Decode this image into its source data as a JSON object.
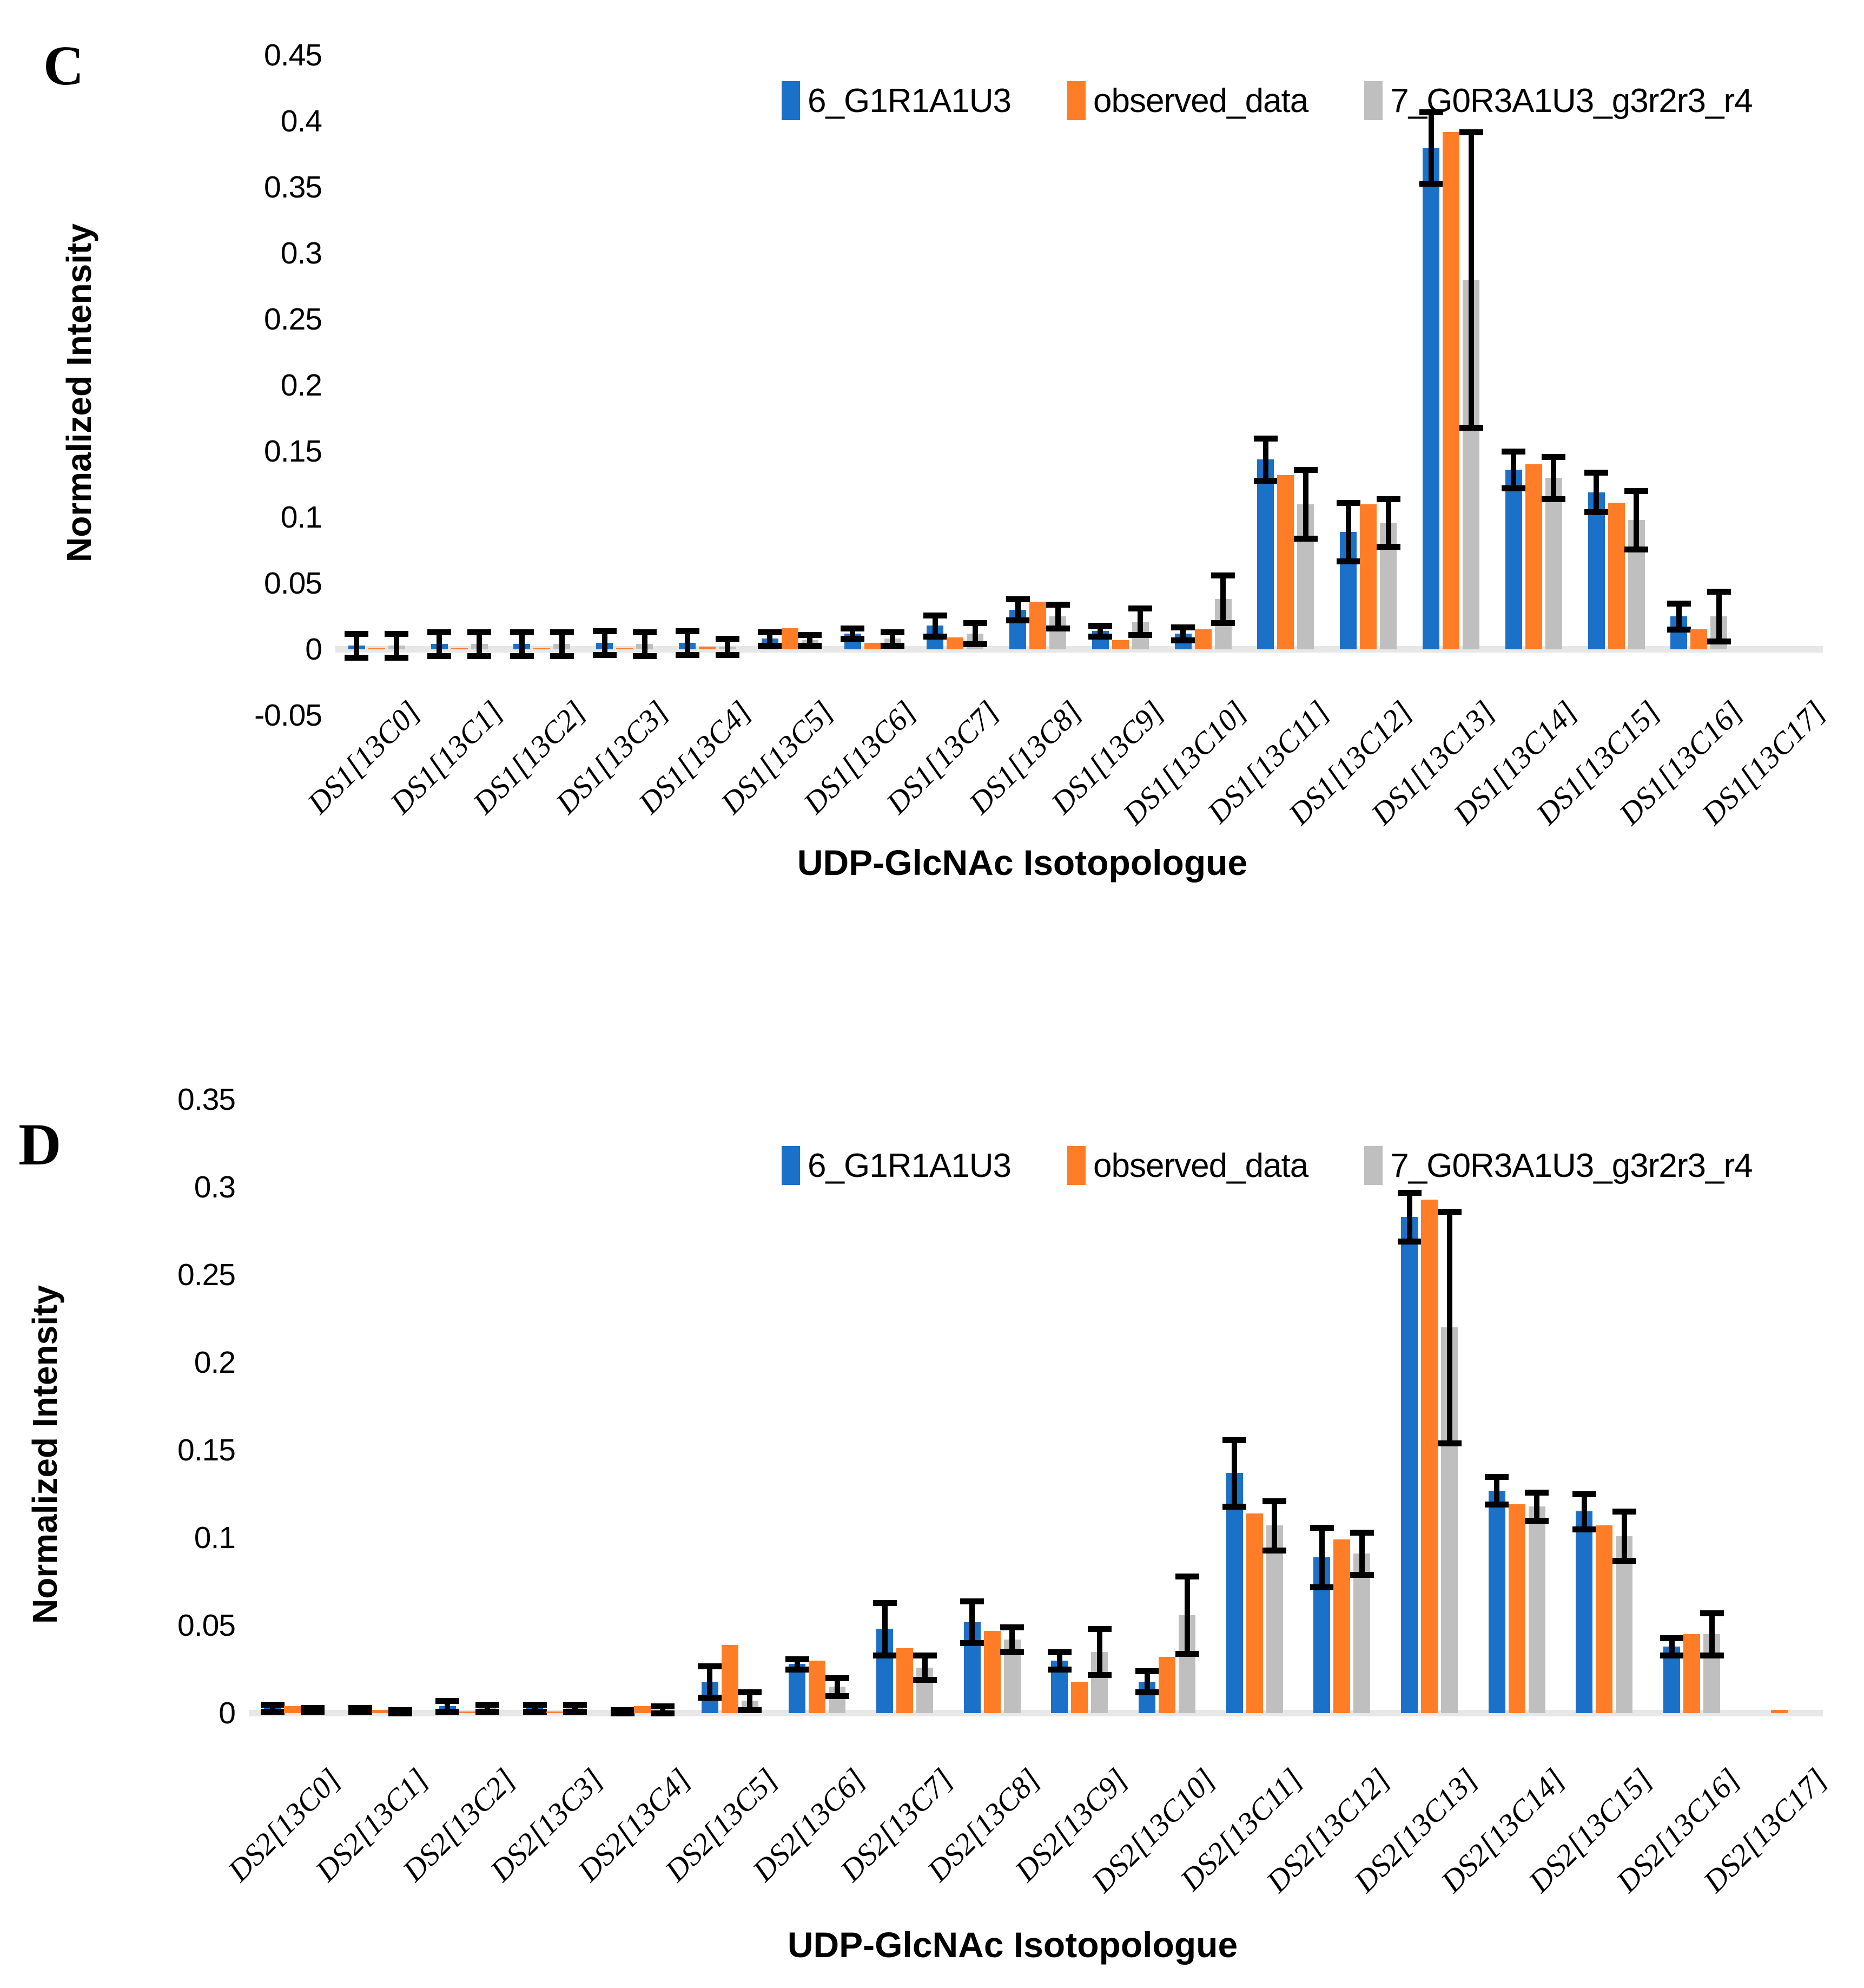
{
  "colors": {
    "blue": "#1B70C7",
    "orange": "#FF7D26",
    "gray": "#BFBFBF",
    "error_bar": "#000000",
    "axis_line": "#E7E7E7",
    "text": "#000000",
    "background": "#FFFFFF"
  },
  "chart_data": [
    {
      "type": "bar",
      "panel_letter": "C",
      "xlabel": "UDP-GlcNAc Isotopologue",
      "ylabel": "Normalized Intensity",
      "ylim": [
        -0.05,
        0.45
      ],
      "y_ticks": [
        "0.45",
        "0.4",
        "0.35",
        "0.3",
        "0.25",
        "0.2",
        "0.15",
        "0.1",
        "0.05",
        "0",
        "-0.05"
      ],
      "grid": false,
      "legend_position": "top-center",
      "categories": [
        "DS1[13C0]",
        "DS1[13C1]",
        "DS1[13C2]",
        "DS1[13C3]",
        "DS1[13C4]",
        "DS1[13C5]",
        "DS1[13C6]",
        "DS1[13C7]",
        "DS1[13C8]",
        "DS1[13C9]",
        "DS1[13C10]",
        "DS1[13C11]",
        "DS1[13C12]",
        "DS1[13C13]",
        "DS1[13C14]",
        "DS1[13C15]",
        "DS1[13C16]",
        "DS1[13C17]"
      ],
      "series": [
        {
          "name": "6_G1R1A1U3",
          "color_key": "blue",
          "values": [
            0.003,
            0.004,
            0.004,
            0.005,
            0.005,
            0.008,
            0.012,
            0.018,
            0.03,
            0.014,
            0.012,
            0.144,
            0.089,
            0.38,
            0.136,
            0.119,
            0.025,
            0
          ],
          "errors": [
            0.009,
            0.009,
            0.009,
            0.009,
            0.009,
            0.005,
            0.004,
            0.008,
            0.008,
            0.004,
            0.005,
            0.016,
            0.022,
            0.027,
            0.014,
            0.015,
            0.01,
            null
          ]
        },
        {
          "name": "observed_data",
          "color_key": "orange",
          "values": [
            0.001,
            0.001,
            0.001,
            0.001,
            0.002,
            0.016,
            0.005,
            0.009,
            0.036,
            0.007,
            0.015,
            0.132,
            0.11,
            0.392,
            0.14,
            0.111,
            0.015,
            0
          ],
          "errors": null
        },
        {
          "name": "7_G0R3A1U3_g3r2r3_r4",
          "color_key": "gray",
          "values": [
            0.003,
            0.004,
            0.004,
            0.004,
            0.002,
            0.007,
            0.008,
            0.012,
            0.025,
            0.021,
            0.038,
            0.11,
            0.096,
            0.28,
            0.13,
            0.098,
            0.025,
            0
          ],
          "errors": [
            0.009,
            0.009,
            0.009,
            0.009,
            0.006,
            0.004,
            0.005,
            0.008,
            0.009,
            0.01,
            0.018,
            0.026,
            0.018,
            0.112,
            0.016,
            0.022,
            0.019,
            null
          ]
        }
      ]
    },
    {
      "type": "bar",
      "panel_letter": "D",
      "xlabel": "UDP-GlcNAc Isotopologue",
      "ylabel": "Normalized Intensity",
      "ylim": [
        0,
        0.35
      ],
      "y_ticks": [
        "0.35",
        "0.3",
        "0.25",
        "0.2",
        "0.15",
        "0.1",
        "0.05",
        "0"
      ],
      "grid": false,
      "legend_position": "top-center",
      "categories": [
        "DS2[13C0]",
        "DS2[13C1]",
        "DS2[13C2]",
        "DS2[13C3]",
        "DS2[13C4]",
        "DS2[13C5]",
        "DS2[13C6]",
        "DS2[13C7]",
        "DS2[13C8]",
        "DS2[13C9]",
        "DS2[13C10]",
        "DS2[13C11]",
        "DS2[13C12]",
        "DS2[13C13]",
        "DS2[13C14]",
        "DS2[13C15]",
        "DS2[13C16]",
        "DS2[13C17]"
      ],
      "series": [
        {
          "name": "6_G1R1A1U3",
          "color_key": "blue",
          "values": [
            0.003,
            0.002,
            0.004,
            0.003,
            0.001,
            0.018,
            0.028,
            0.048,
            0.052,
            0.03,
            0.018,
            0.137,
            0.089,
            0.283,
            0.127,
            0.115,
            0.038,
            0
          ],
          "errors": [
            0.002,
            0.001,
            0.003,
            0.002,
            0.001,
            0.009,
            0.003,
            0.015,
            0.012,
            0.005,
            0.006,
            0.019,
            0.017,
            0.014,
            0.008,
            0.01,
            0.005,
            null
          ]
        },
        {
          "name": "observed_data",
          "color_key": "orange",
          "values": [
            0.004,
            0.002,
            0.001,
            0.001,
            0.004,
            0.039,
            0.03,
            0.037,
            0.047,
            0.018,
            0.032,
            0.114,
            0.099,
            0.293,
            0.119,
            0.107,
            0.045,
            0.002
          ],
          "errors": null
        },
        {
          "name": "7_G0R3A1U3_g3r2r3_r4",
          "color_key": "gray",
          "values": [
            0.002,
            0.001,
            0.003,
            0.003,
            0.002,
            0.007,
            0.015,
            0.026,
            0.042,
            0.035,
            0.056,
            0.107,
            0.091,
            0.22,
            0.118,
            0.101,
            0.045,
            0
          ],
          "errors": [
            0.001,
            0.001,
            0.002,
            0.002,
            0.002,
            0.005,
            0.005,
            0.007,
            0.007,
            0.013,
            0.022,
            0.014,
            0.012,
            0.066,
            0.008,
            0.014,
            0.012,
            null
          ]
        }
      ]
    }
  ]
}
